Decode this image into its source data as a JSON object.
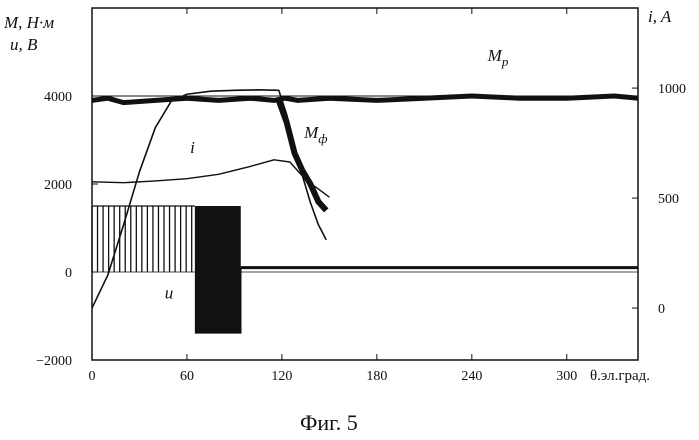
{
  "chart_data": {
    "type": "line",
    "caption": "Фиг. 5",
    "left_axis_label_line1": "M, Н·м",
    "left_axis_label_line2": "u, B",
    "right_axis_label": "i, A",
    "xlabel": "θ.эл.град.",
    "xlim": [
      0,
      345
    ],
    "ylim": [
      -2000,
      6000
    ],
    "right_ylim": [
      -236,
      1364
    ],
    "x_ticks": [
      "0",
      "60",
      "120",
      "180",
      "240",
      "300"
    ],
    "x_tick_values": [
      0,
      60,
      120,
      180,
      240,
      300
    ],
    "y_ticks": [
      "4000",
      "2000",
      "0",
      "−2000"
    ],
    "y_tick_values": [
      4000,
      2000,
      0,
      -2000
    ],
    "right_y_ticks": [
      "1000",
      "500",
      "0"
    ],
    "right_y_tick_values": [
      1000,
      500,
      0
    ],
    "reference_line": 4000,
    "series": [
      {
        "name": "Mp",
        "label_main": "M",
        "label_sub": "p",
        "label_at": [
          250,
          4800
        ],
        "axis": "left",
        "x": [
          0,
          10,
          20,
          40,
          60,
          80,
          100,
          115,
          122,
          130,
          150,
          180,
          210,
          240,
          270,
          300,
          330,
          345
        ],
        "y": [
          3900,
          3950,
          3850,
          3900,
          3950,
          3900,
          3950,
          3900,
          3950,
          3900,
          3950,
          3900,
          3950,
          4000,
          3950,
          3950,
          4000,
          3950
        ]
      },
      {
        "name": "Mф",
        "label_main": "M",
        "label_sub": "ф",
        "label_at": [
          134,
          3050
        ],
        "axis": "left",
        "x": [
          118,
          123,
          128,
          133,
          138,
          143,
          148
        ],
        "y": [
          3900,
          3400,
          2700,
          2300,
          2000,
          1600,
          1400
        ]
      },
      {
        "name": "i",
        "label_main": "i",
        "label_at": [
          62,
          2700
        ],
        "axis": "right",
        "x": [
          0,
          10,
          20,
          30,
          40,
          50,
          60,
          75,
          90,
          105,
          118,
          123,
          128,
          133,
          138,
          143,
          148
        ],
        "y": [
          0,
          150,
          380,
          620,
          820,
          940,
          972,
          986,
          990,
          992,
          990,
          880,
          740,
          600,
          480,
          380,
          310
        ]
      },
      {
        "name": "Mload",
        "axis": "left",
        "x": [
          0,
          20,
          40,
          60,
          80,
          100,
          115,
          125,
          135,
          150
        ],
        "y": [
          2050,
          2030,
          2070,
          2120,
          2220,
          2400,
          2550,
          2500,
          2100,
          1700
        ]
      },
      {
        "name": "u",
        "label_main": "u",
        "label_at": [
          46,
          -600
        ],
        "axis": "left",
        "pulse_high": 1500,
        "pulse_low": 0,
        "pwm_x_start": 0,
        "pwm_x_end": 65,
        "pwm_period": 3.5,
        "solid_block": [
          65,
          94
        ],
        "negative_level": -1400,
        "tail_level": 100,
        "tail_start": 94
      }
    ]
  }
}
